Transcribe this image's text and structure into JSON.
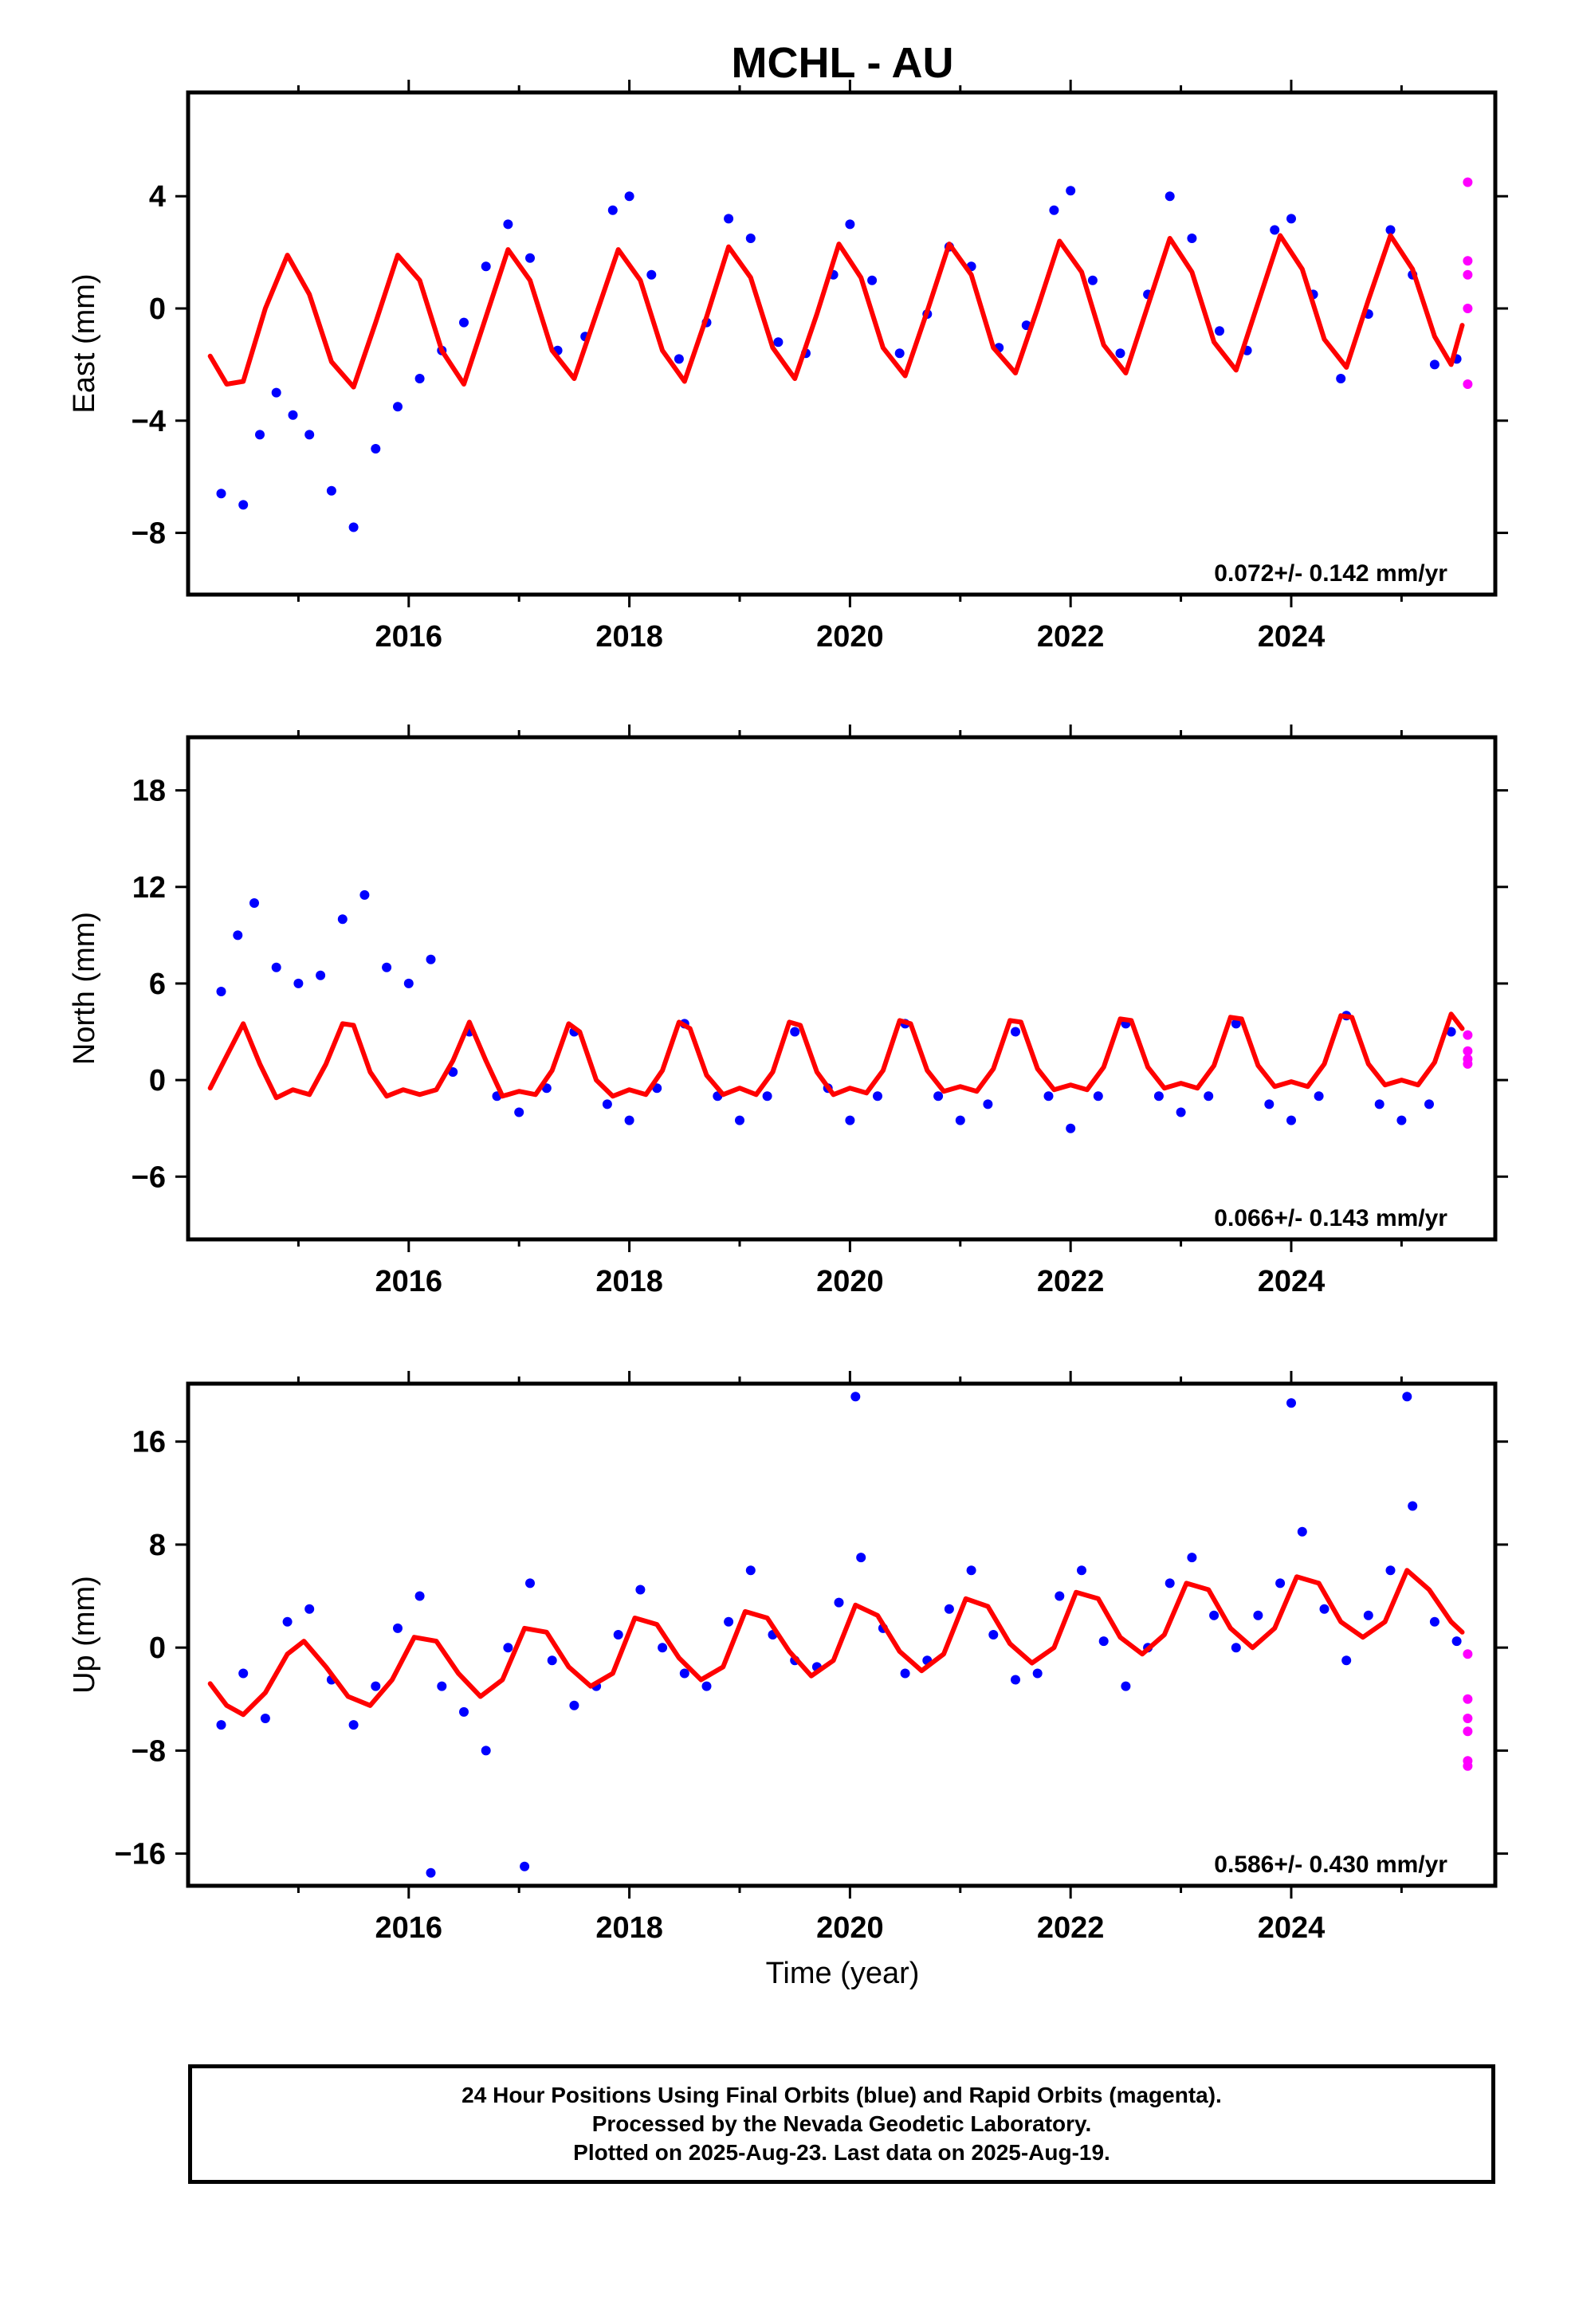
{
  "title": "MCHL - AU",
  "colors": {
    "final_orbits": "#0000ff",
    "rapid_orbits": "#ff00ff",
    "model": "#ff0000"
  },
  "footer": {
    "line1": "24 Hour Positions Using Final Orbits (blue) and Rapid Orbits (magenta).",
    "line2": "Processed by the Nevada Geodetic Laboratory.",
    "line3": "Plotted on 2025-Aug-23. Last data on 2025-Aug-19."
  },
  "chart_data": [
    {
      "type": "scatter",
      "ylabel": "East (mm)",
      "rate": "0.072+/- 0.142 mm/yr",
      "xlim": [
        2014.0,
        2025.85
      ],
      "ylim": [
        -10.2,
        7.7
      ],
      "xticks": [
        "2016",
        "2018",
        "2020",
        "2022",
        "2024"
      ],
      "yticks": [
        "-8",
        "-4",
        "0",
        "4"
      ],
      "series": [
        {
          "style": "points",
          "color_key": "final_orbits",
          "x": [
            2014.3,
            2014.5,
            2014.65,
            2014.8,
            2014.95,
            2015.1,
            2015.3,
            2015.5,
            2015.7,
            2015.9,
            2016.1,
            2016.3,
            2016.5,
            2016.7,
            2016.9,
            2017.1,
            2017.35,
            2017.6,
            2017.85,
            2018.0,
            2018.2,
            2018.45,
            2018.7,
            2018.9,
            2019.1,
            2019.35,
            2019.6,
            2019.85,
            2020.0,
            2020.2,
            2020.45,
            2020.7,
            2020.9,
            2021.1,
            2021.35,
            2021.6,
            2021.85,
            2022.0,
            2022.2,
            2022.45,
            2022.7,
            2022.9,
            2023.1,
            2023.35,
            2023.6,
            2023.85,
            2024.0,
            2024.2,
            2024.45,
            2024.7,
            2024.9,
            2025.1,
            2025.3,
            2025.5
          ],
          "y": [
            -6.6,
            -7.0,
            -4.5,
            -3.0,
            -3.8,
            -4.5,
            -6.5,
            -7.8,
            -5.0,
            -3.5,
            -2.5,
            -1.5,
            -0.5,
            1.5,
            3.0,
            1.8,
            -1.5,
            -1.0,
            3.5,
            4.0,
            1.2,
            -1.8,
            -0.5,
            3.2,
            2.5,
            -1.2,
            -1.6,
            1.2,
            3.0,
            1.0,
            -1.6,
            -0.2,
            2.2,
            1.5,
            -1.4,
            -0.6,
            3.5,
            4.2,
            1.0,
            -1.6,
            0.5,
            4.0,
            2.5,
            -0.8,
            -1.5,
            2.8,
            3.2,
            0.5,
            -2.5,
            -0.2,
            2.8,
            1.2,
            -2.0,
            -1.8
          ]
        },
        {
          "style": "points",
          "color_key": "rapid_orbits",
          "x": [
            2025.6,
            2025.6,
            2025.6,
            2025.6,
            2025.6
          ],
          "y": [
            4.5,
            1.7,
            1.2,
            0.0,
            -2.7
          ]
        },
        {
          "style": "line",
          "color_key": "model",
          "x": [
            2014.2,
            2014.35,
            2014.5,
            2014.7,
            2014.9,
            2015.1,
            2015.3,
            2015.5,
            2015.7,
            2015.9,
            2016.1,
            2016.3,
            2016.5,
            2016.7,
            2016.9,
            2017.1,
            2017.3,
            2017.5,
            2017.7,
            2017.9,
            2018.1,
            2018.3,
            2018.5,
            2018.7,
            2018.9,
            2019.1,
            2019.3,
            2019.5,
            2019.7,
            2019.9,
            2020.1,
            2020.3,
            2020.5,
            2020.7,
            2020.9,
            2021.1,
            2021.3,
            2021.5,
            2021.7,
            2021.9,
            2022.1,
            2022.3,
            2022.5,
            2022.7,
            2022.9,
            2023.1,
            2023.3,
            2023.5,
            2023.7,
            2023.9,
            2024.1,
            2024.3,
            2024.5,
            2024.7,
            2024.9,
            2025.1,
            2025.3,
            2025.45,
            2025.55
          ],
          "y": [
            -1.7,
            -2.7,
            -2.6,
            0.0,
            1.9,
            0.5,
            -1.9,
            -2.8,
            -0.5,
            1.9,
            1.0,
            -1.5,
            -2.7,
            -0.3,
            2.1,
            1.0,
            -1.5,
            -2.5,
            -0.2,
            2.1,
            1.0,
            -1.5,
            -2.6,
            -0.3,
            2.2,
            1.1,
            -1.4,
            -2.5,
            -0.2,
            2.3,
            1.1,
            -1.4,
            -2.4,
            -0.1,
            2.3,
            1.2,
            -1.4,
            -2.3,
            0.0,
            2.4,
            1.3,
            -1.3,
            -2.3,
            0.1,
            2.5,
            1.3,
            -1.2,
            -2.2,
            0.2,
            2.6,
            1.4,
            -1.1,
            -2.1,
            0.3,
            2.6,
            1.4,
            -1.0,
            -2.0,
            -0.6
          ]
        }
      ]
    },
    {
      "type": "scatter",
      "ylabel": "North (mm)",
      "rate": "0.066+/- 0.143 mm/yr",
      "xlim": [
        2014.0,
        2025.85
      ],
      "ylim": [
        -9.9,
        21.3
      ],
      "xticks": [
        "2016",
        "2018",
        "2020",
        "2022",
        "2024"
      ],
      "yticks": [
        "-6",
        "0",
        "6",
        "12",
        "18"
      ],
      "series": [
        {
          "style": "points",
          "color_key": "final_orbits",
          "x": [
            2014.3,
            2014.45,
            2014.6,
            2014.8,
            2015.0,
            2015.2,
            2015.4,
            2015.6,
            2015.8,
            2016.0,
            2016.2,
            2016.4,
            2016.55,
            2016.8,
            2017.0,
            2017.25,
            2017.5,
            2017.8,
            2018.0,
            2018.25,
            2018.5,
            2018.8,
            2019.0,
            2019.25,
            2019.5,
            2019.8,
            2020.0,
            2020.25,
            2020.5,
            2020.8,
            2021.0,
            2021.25,
            2021.5,
            2021.8,
            2022.0,
            2022.25,
            2022.5,
            2022.8,
            2023.0,
            2023.25,
            2023.5,
            2023.8,
            2024.0,
            2024.25,
            2024.5,
            2024.8,
            2025.0,
            2025.25,
            2025.45
          ],
          "y": [
            5.5,
            9.0,
            11.0,
            7.0,
            6.0,
            6.5,
            10.0,
            11.5,
            7.0,
            6.0,
            7.5,
            0.5,
            3.0,
            -1.0,
            -2.0,
            -0.5,
            3.0,
            -1.5,
            -2.5,
            -0.5,
            3.5,
            -1.0,
            -2.5,
            -1.0,
            3.0,
            -0.5,
            -2.5,
            -1.0,
            3.5,
            -1.0,
            -2.5,
            -1.5,
            3.0,
            -1.0,
            -3.0,
            -1.0,
            3.5,
            -1.0,
            -2.0,
            -1.0,
            3.5,
            -1.5,
            -2.5,
            -1.0,
            4.0,
            -1.5,
            -2.5,
            -1.5,
            3.0
          ]
        },
        {
          "style": "points",
          "color_key": "rapid_orbits",
          "x": [
            2025.6,
            2025.6,
            2025.6,
            2025.6
          ],
          "y": [
            2.8,
            1.8,
            1.3,
            1.0
          ]
        },
        {
          "style": "line",
          "color_key": "model",
          "x": [
            2014.2,
            2014.35,
            2014.5,
            2014.65,
            2014.8,
            2014.95,
            2015.1,
            2015.25,
            2015.4,
            2015.5,
            2015.65,
            2015.8,
            2015.95,
            2016.1,
            2016.25,
            2016.4,
            2016.55,
            2016.7,
            2016.85,
            2017.0,
            2017.15,
            2017.3,
            2017.45,
            2017.55,
            2017.7,
            2017.85,
            2018.0,
            2018.15,
            2018.3,
            2018.45,
            2018.55,
            2018.7,
            2018.85,
            2019.0,
            2019.15,
            2019.3,
            2019.45,
            2019.55,
            2019.7,
            2019.85,
            2020.0,
            2020.15,
            2020.3,
            2020.45,
            2020.55,
            2020.7,
            2020.85,
            2021.0,
            2021.15,
            2021.3,
            2021.45,
            2021.55,
            2021.7,
            2021.85,
            2022.0,
            2022.15,
            2022.3,
            2022.45,
            2022.55,
            2022.7,
            2022.85,
            2023.0,
            2023.15,
            2023.3,
            2023.45,
            2023.55,
            2023.7,
            2023.85,
            2024.0,
            2024.15,
            2024.3,
            2024.45,
            2024.55,
            2024.7,
            2024.85,
            2025.0,
            2025.15,
            2025.3,
            2025.45,
            2025.55
          ],
          "y": [
            -0.5,
            1.5,
            3.5,
            1.0,
            -1.1,
            -0.6,
            -0.9,
            1.0,
            3.5,
            3.4,
            0.5,
            -1.0,
            -0.6,
            -0.9,
            -0.6,
            1.2,
            3.6,
            1.2,
            -1.0,
            -0.7,
            -0.9,
            0.6,
            3.5,
            3.0,
            0.0,
            -1.0,
            -0.6,
            -0.9,
            0.6,
            3.6,
            3.2,
            0.3,
            -0.9,
            -0.5,
            -0.9,
            0.5,
            3.6,
            3.4,
            0.5,
            -0.9,
            -0.5,
            -0.8,
            0.6,
            3.7,
            3.5,
            0.6,
            -0.7,
            -0.4,
            -0.7,
            0.7,
            3.7,
            3.6,
            0.7,
            -0.6,
            -0.3,
            -0.6,
            0.8,
            3.8,
            3.7,
            0.8,
            -0.5,
            -0.2,
            -0.5,
            0.9,
            3.9,
            3.8,
            0.9,
            -0.4,
            -0.1,
            -0.4,
            1.0,
            4.0,
            3.9,
            1.0,
            -0.3,
            0.0,
            -0.3,
            1.1,
            4.1,
            3.2
          ]
        }
      ]
    },
    {
      "type": "scatter",
      "ylabel": "Up (mm)",
      "rate": "0.586+/- 0.430 mm/yr",
      "xlim": [
        2014.0,
        2025.85
      ],
      "ylim": [
        -18.5,
        20.5
      ],
      "xticks": [
        "2016",
        "2018",
        "2020",
        "2022",
        "2024"
      ],
      "yticks": [
        "-16",
        "-8",
        "0",
        "8",
        "16"
      ],
      "series": [
        {
          "style": "points",
          "color_key": "final_orbits",
          "x": [
            2014.3,
            2014.5,
            2014.7,
            2014.9,
            2015.1,
            2015.3,
            2015.5,
            2015.7,
            2015.9,
            2016.1,
            2016.3,
            2016.5,
            2016.7,
            2016.9,
            2017.1,
            2017.3,
            2017.5,
            2017.7,
            2017.9,
            2018.1,
            2018.3,
            2018.5,
            2018.7,
            2018.9,
            2019.1,
            2019.3,
            2019.5,
            2019.7,
            2019.9,
            2020.1,
            2020.3,
            2020.5,
            2020.7,
            2020.9,
            2021.1,
            2021.3,
            2021.5,
            2021.7,
            2021.9,
            2022.1,
            2022.3,
            2022.5,
            2022.7,
            2022.9,
            2023.1,
            2023.3,
            2023.5,
            2023.7,
            2023.9,
            2024.1,
            2024.3,
            2024.5,
            2024.7,
            2024.9,
            2025.1,
            2025.3,
            2025.5,
            2016.2,
            2017.05,
            2020.05,
            2024.0,
            2025.05
          ],
          "y": [
            -6.0,
            -2.0,
            -5.5,
            2.0,
            3.0,
            -2.5,
            -6.0,
            -3.0,
            1.5,
            4.0,
            -3.0,
            -5.0,
            -8.0,
            0.0,
            5.0,
            -1.0,
            -4.5,
            -3.0,
            1.0,
            4.5,
            0.0,
            -2.0,
            -3.0,
            2.0,
            6.0,
            1.0,
            -1.0,
            -1.5,
            3.5,
            7.0,
            1.5,
            -2.0,
            -1.0,
            3.0,
            6.0,
            1.0,
            -2.5,
            -2.0,
            4.0,
            6.0,
            0.5,
            -3.0,
            0.0,
            5.0,
            7.0,
            2.5,
            0.0,
            2.5,
            5.0,
            9.0,
            3.0,
            -1.0,
            2.5,
            6.0,
            11.0,
            2.0,
            0.5,
            -17.5,
            -17.0,
            19.5,
            19.0,
            19.5
          ]
        },
        {
          "style": "points",
          "color_key": "rapid_orbits",
          "x": [
            2025.6,
            2025.6,
            2025.6,
            2025.6,
            2025.6,
            2025.6
          ],
          "y": [
            -0.5,
            -4.0,
            -5.5,
            -6.5,
            -8.8,
            -9.2
          ]
        },
        {
          "style": "line",
          "color_key": "model",
          "x": [
            2014.2,
            2014.35,
            2014.5,
            2014.7,
            2014.9,
            2015.05,
            2015.25,
            2015.45,
            2015.65,
            2015.85,
            2016.05,
            2016.25,
            2016.45,
            2016.65,
            2016.85,
            2017.05,
            2017.25,
            2017.45,
            2017.65,
            2017.85,
            2018.05,
            2018.25,
            2018.45,
            2018.65,
            2018.85,
            2019.05,
            2019.25,
            2019.45,
            2019.65,
            2019.85,
            2020.05,
            2020.25,
            2020.45,
            2020.65,
            2020.85,
            2021.05,
            2021.25,
            2021.45,
            2021.65,
            2021.85,
            2022.05,
            2022.25,
            2022.45,
            2022.65,
            2022.85,
            2023.05,
            2023.25,
            2023.45,
            2023.65,
            2023.85,
            2024.05,
            2024.25,
            2024.45,
            2024.65,
            2024.85,
            2025.05,
            2025.25,
            2025.45,
            2025.55
          ],
          "y": [
            -2.8,
            -4.5,
            -5.2,
            -3.5,
            -0.5,
            0.5,
            -1.5,
            -3.8,
            -4.5,
            -2.5,
            0.8,
            0.5,
            -2.0,
            -3.8,
            -2.5,
            1.5,
            1.2,
            -1.5,
            -3.0,
            -2.0,
            2.3,
            1.8,
            -0.8,
            -2.5,
            -1.5,
            2.8,
            2.3,
            -0.3,
            -2.2,
            -1.0,
            3.3,
            2.5,
            -0.3,
            -1.8,
            -0.5,
            3.8,
            3.2,
            0.3,
            -1.2,
            0.0,
            4.3,
            3.8,
            0.8,
            -0.5,
            1.0,
            5.0,
            4.5,
            1.5,
            0.0,
            1.5,
            5.5,
            5.0,
            2.0,
            0.8,
            2.0,
            6.0,
            4.5,
            2.0,
            1.2
          ]
        }
      ]
    }
  ]
}
